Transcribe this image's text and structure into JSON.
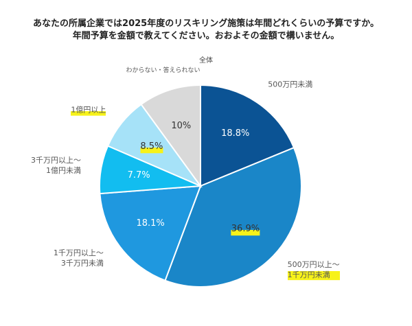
{
  "chart_data": {
    "type": "pie",
    "title": "あなたの所属企業では2025年度のリスキリング施策は年間どれくらいの予算ですか。\n年間予算を金額で教えてください。おおよその金額で構いません。",
    "subtitle": "全体",
    "categories": [
      "500万円未満",
      "500万円以上～\n1千万円未満",
      "1千万円以上～\n3千万円未満",
      "3千万円以上～\n1億円未満",
      "1億円以上",
      "わからない・答えられない"
    ],
    "values": [
      18.8,
      36.9,
      18.1,
      7.7,
      8.5,
      10
    ],
    "value_labels": [
      "18.8%",
      "36.9%",
      "18.1%",
      "7.7%",
      "8.5%",
      "10%"
    ],
    "colors": [
      "#0b5394",
      "#1a86c8",
      "#1f98df",
      "#12bdf0",
      "#a6e2f8",
      "#d9d9d9"
    ],
    "highlight": [
      1,
      4
    ]
  }
}
